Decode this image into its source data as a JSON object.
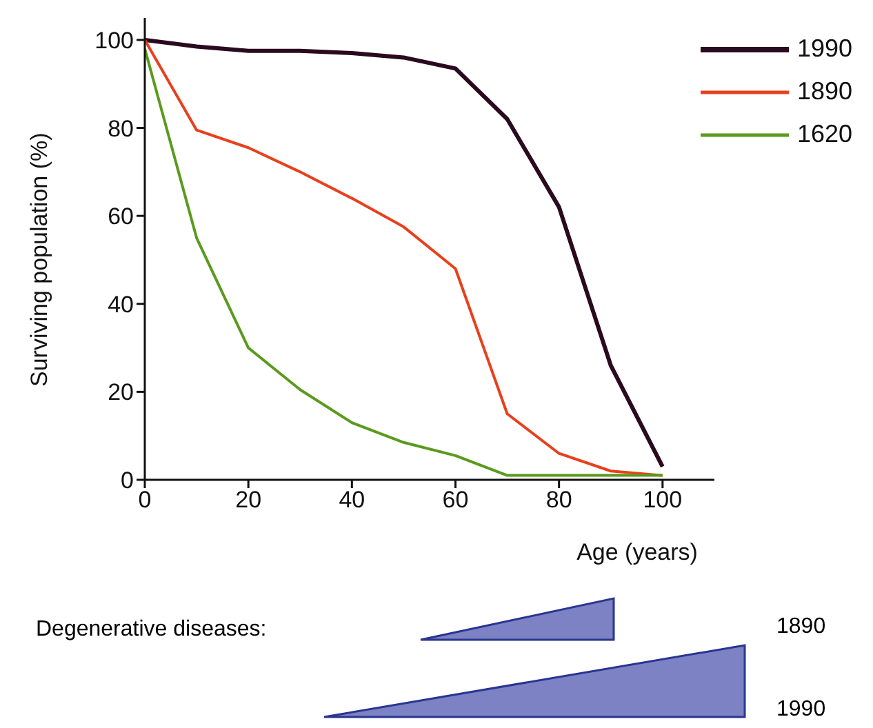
{
  "chart_data": {
    "type": "line",
    "xlabel": "Age (years)",
    "ylabel": "Surviving population (%)",
    "x": [
      0,
      10,
      20,
      30,
      40,
      50,
      60,
      70,
      80,
      90,
      100
    ],
    "series": [
      {
        "name": "1990",
        "color": "#2a0a1e",
        "values": [
          100,
          98.5,
          97.5,
          97.5,
          97,
          96,
          93.5,
          82,
          62,
          26,
          3
        ]
      },
      {
        "name": "1890",
        "color": "#e8401c",
        "values": [
          100,
          79.5,
          75.5,
          70,
          64,
          57.5,
          48,
          15,
          6,
          2,
          1
        ]
      },
      {
        "name": "1620",
        "color": "#5a9a1e",
        "values": [
          98,
          55,
          30,
          20.5,
          13,
          8.5,
          5.5,
          1,
          1,
          1,
          1
        ]
      }
    ],
    "xlim": [
      0,
      110
    ],
    "xticks": [
      0,
      20,
      40,
      60,
      80,
      100
    ],
    "ylim": [
      0,
      105
    ],
    "yticks": [
      0,
      20,
      40,
      60,
      80,
      100
    ],
    "grid": false,
    "legend": "top right",
    "marker": "none",
    "line_style": "solid",
    "annotations": [
      "Degenerative diseases:",
      "1890",
      "1990"
    ]
  }
}
